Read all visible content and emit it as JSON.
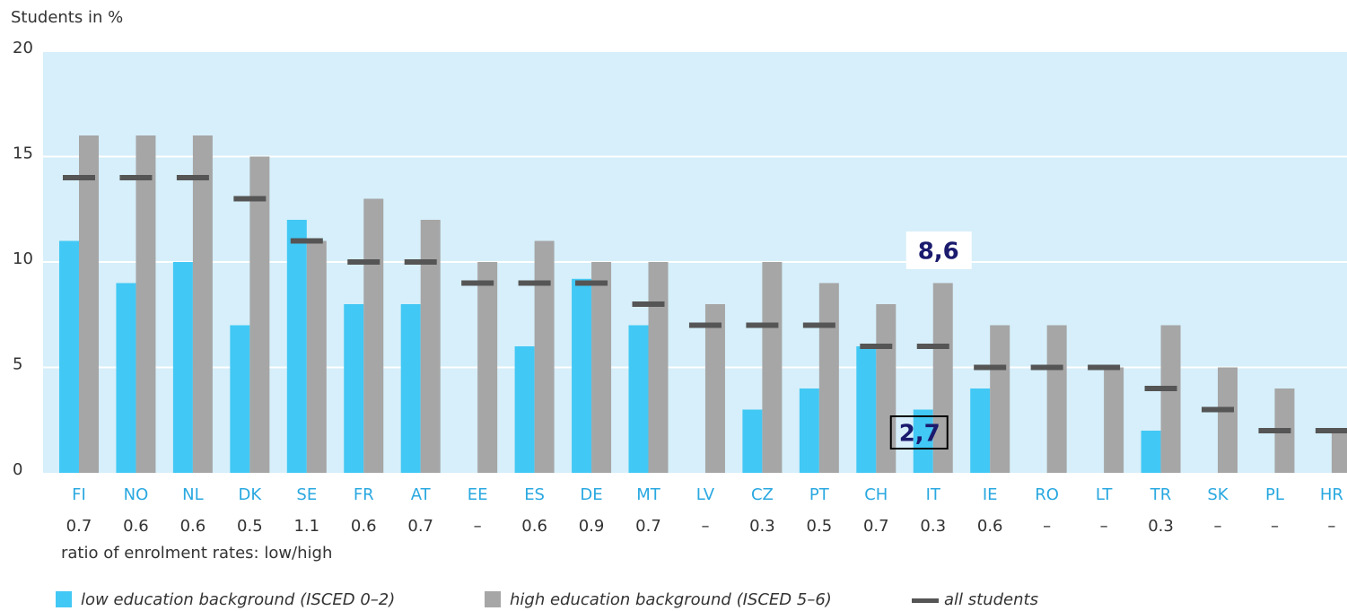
{
  "chart_data": {
    "type": "bar",
    "y_axis_label": "Students in %",
    "categories": [
      "FI",
      "NO",
      "NL",
      "DK",
      "SE",
      "FR",
      "AT",
      "EE",
      "ES",
      "DE",
      "MT",
      "LV",
      "CZ",
      "PT",
      "CH",
      "IT",
      "IE",
      "RO",
      "LT",
      "TR",
      "SK",
      "PL",
      "HR"
    ],
    "series": [
      {
        "name": "low education background (ISCED 0–2)",
        "color": "#42c8f4",
        "mark": "bar",
        "values": [
          11,
          9,
          10,
          7,
          12,
          8,
          8,
          null,
          6,
          9.2,
          7,
          null,
          3,
          4,
          6,
          3,
          4,
          null,
          null,
          2,
          null,
          null,
          null
        ]
      },
      {
        "name": "high education background (ISCED 5–6)",
        "color": "#a6a6a6",
        "mark": "bar",
        "values": [
          16,
          16,
          16,
          15,
          11,
          13,
          12,
          10,
          11,
          10,
          10,
          8,
          10,
          9,
          8,
          9,
          7,
          7,
          5,
          7,
          5,
          4,
          2
        ]
      },
      {
        "name": "all students",
        "color": "#555555",
        "mark": "dash",
        "values": [
          14,
          14,
          14,
          13,
          11,
          10,
          10,
          9,
          9,
          9,
          8,
          7,
          7,
          7,
          6,
          6,
          5,
          5,
          5,
          4,
          3,
          2,
          2
        ]
      }
    ],
    "ratio_title": "ratio of enrolment rates: low/high",
    "ratios": [
      "0.7",
      "0.6",
      "0.6",
      "0.5",
      "1.1",
      "0.6",
      "0.7",
      "–",
      "0.6",
      "0.9",
      "0.7",
      "–",
      "0.3",
      "0.5",
      "0.7",
      "0.3",
      "0.6",
      "–",
      "–",
      "0.3",
      "–",
      "–",
      "–"
    ],
    "annotations": [
      {
        "text": "8,6",
        "category": "IT"
      },
      {
        "text": "2,7",
        "category": "IT"
      }
    ],
    "ylim": [
      0,
      20
    ],
    "yticks": [
      0,
      5,
      10,
      15,
      20
    ],
    "grid": true,
    "background": "#d6effa"
  }
}
